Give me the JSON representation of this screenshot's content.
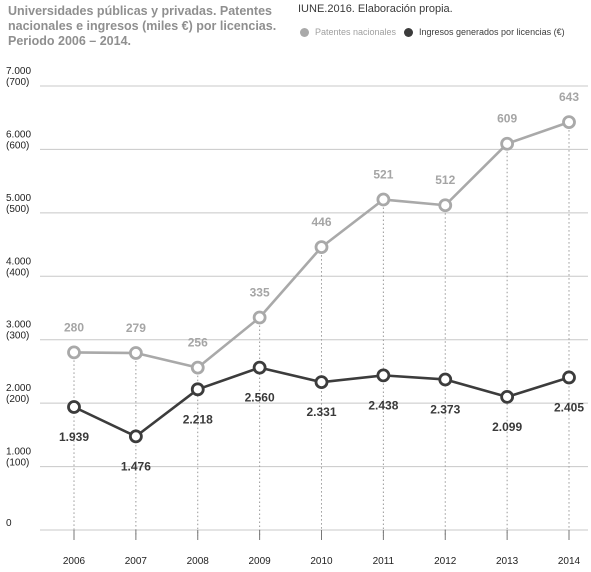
{
  "header": {
    "title_lines": [
      "Universidades públicas y privadas. Patentes",
      "nacionales e ingresos (miles €) por licencias.",
      "Periodo 2006 – 2014."
    ],
    "source": "IUNE.2016. Elaboración propia."
  },
  "colors": {
    "patentes": "#a9a9a9",
    "ingresos": "#3c3c3c",
    "grid": "#c8c8c8",
    "dotted": "#999999"
  },
  "chart_data": {
    "type": "line",
    "categories": [
      "2006",
      "2007",
      "2008",
      "2009",
      "2010",
      "2011",
      "2012",
      "2013",
      "2014"
    ],
    "y_ticks": [
      {
        "value": 0,
        "label": "0",
        "sub": ""
      },
      {
        "value": 1000,
        "label": "1.000",
        "sub": "(100)"
      },
      {
        "value": 2000,
        "label": "2.000",
        "sub": "(200)"
      },
      {
        "value": 3000,
        "label": "3.000",
        "sub": "(300)"
      },
      {
        "value": 4000,
        "label": "4.000",
        "sub": "(400)"
      },
      {
        "value": 5000,
        "label": "5.000",
        "sub": "(500)"
      },
      {
        "value": 6000,
        "label": "6.000",
        "sub": "(600)"
      },
      {
        "value": 7000,
        "label": "7.000",
        "sub": "(700)"
      }
    ],
    "ylim": [
      0,
      7000
    ],
    "grid": true,
    "legend_position": "top",
    "series": [
      {
        "name": "Patentes nacionales",
        "axis": "secondary (values in parentheses)",
        "values": [
          280,
          279,
          256,
          335,
          446,
          521,
          512,
          609,
          643
        ],
        "labels": [
          "280",
          "279",
          "256",
          "335",
          "446",
          "521",
          "512",
          "609",
          "643"
        ]
      },
      {
        "name": "Ingresos generados por licencias (€)",
        "axis": "primary",
        "values": [
          1939,
          1476,
          2218,
          2560,
          2331,
          2438,
          2373,
          2099,
          2405
        ],
        "labels": [
          "1.939",
          "1.476",
          "2.218",
          "2.560",
          "2.331",
          "2.438",
          "2.373",
          "2.099",
          "2.405"
        ]
      }
    ]
  }
}
